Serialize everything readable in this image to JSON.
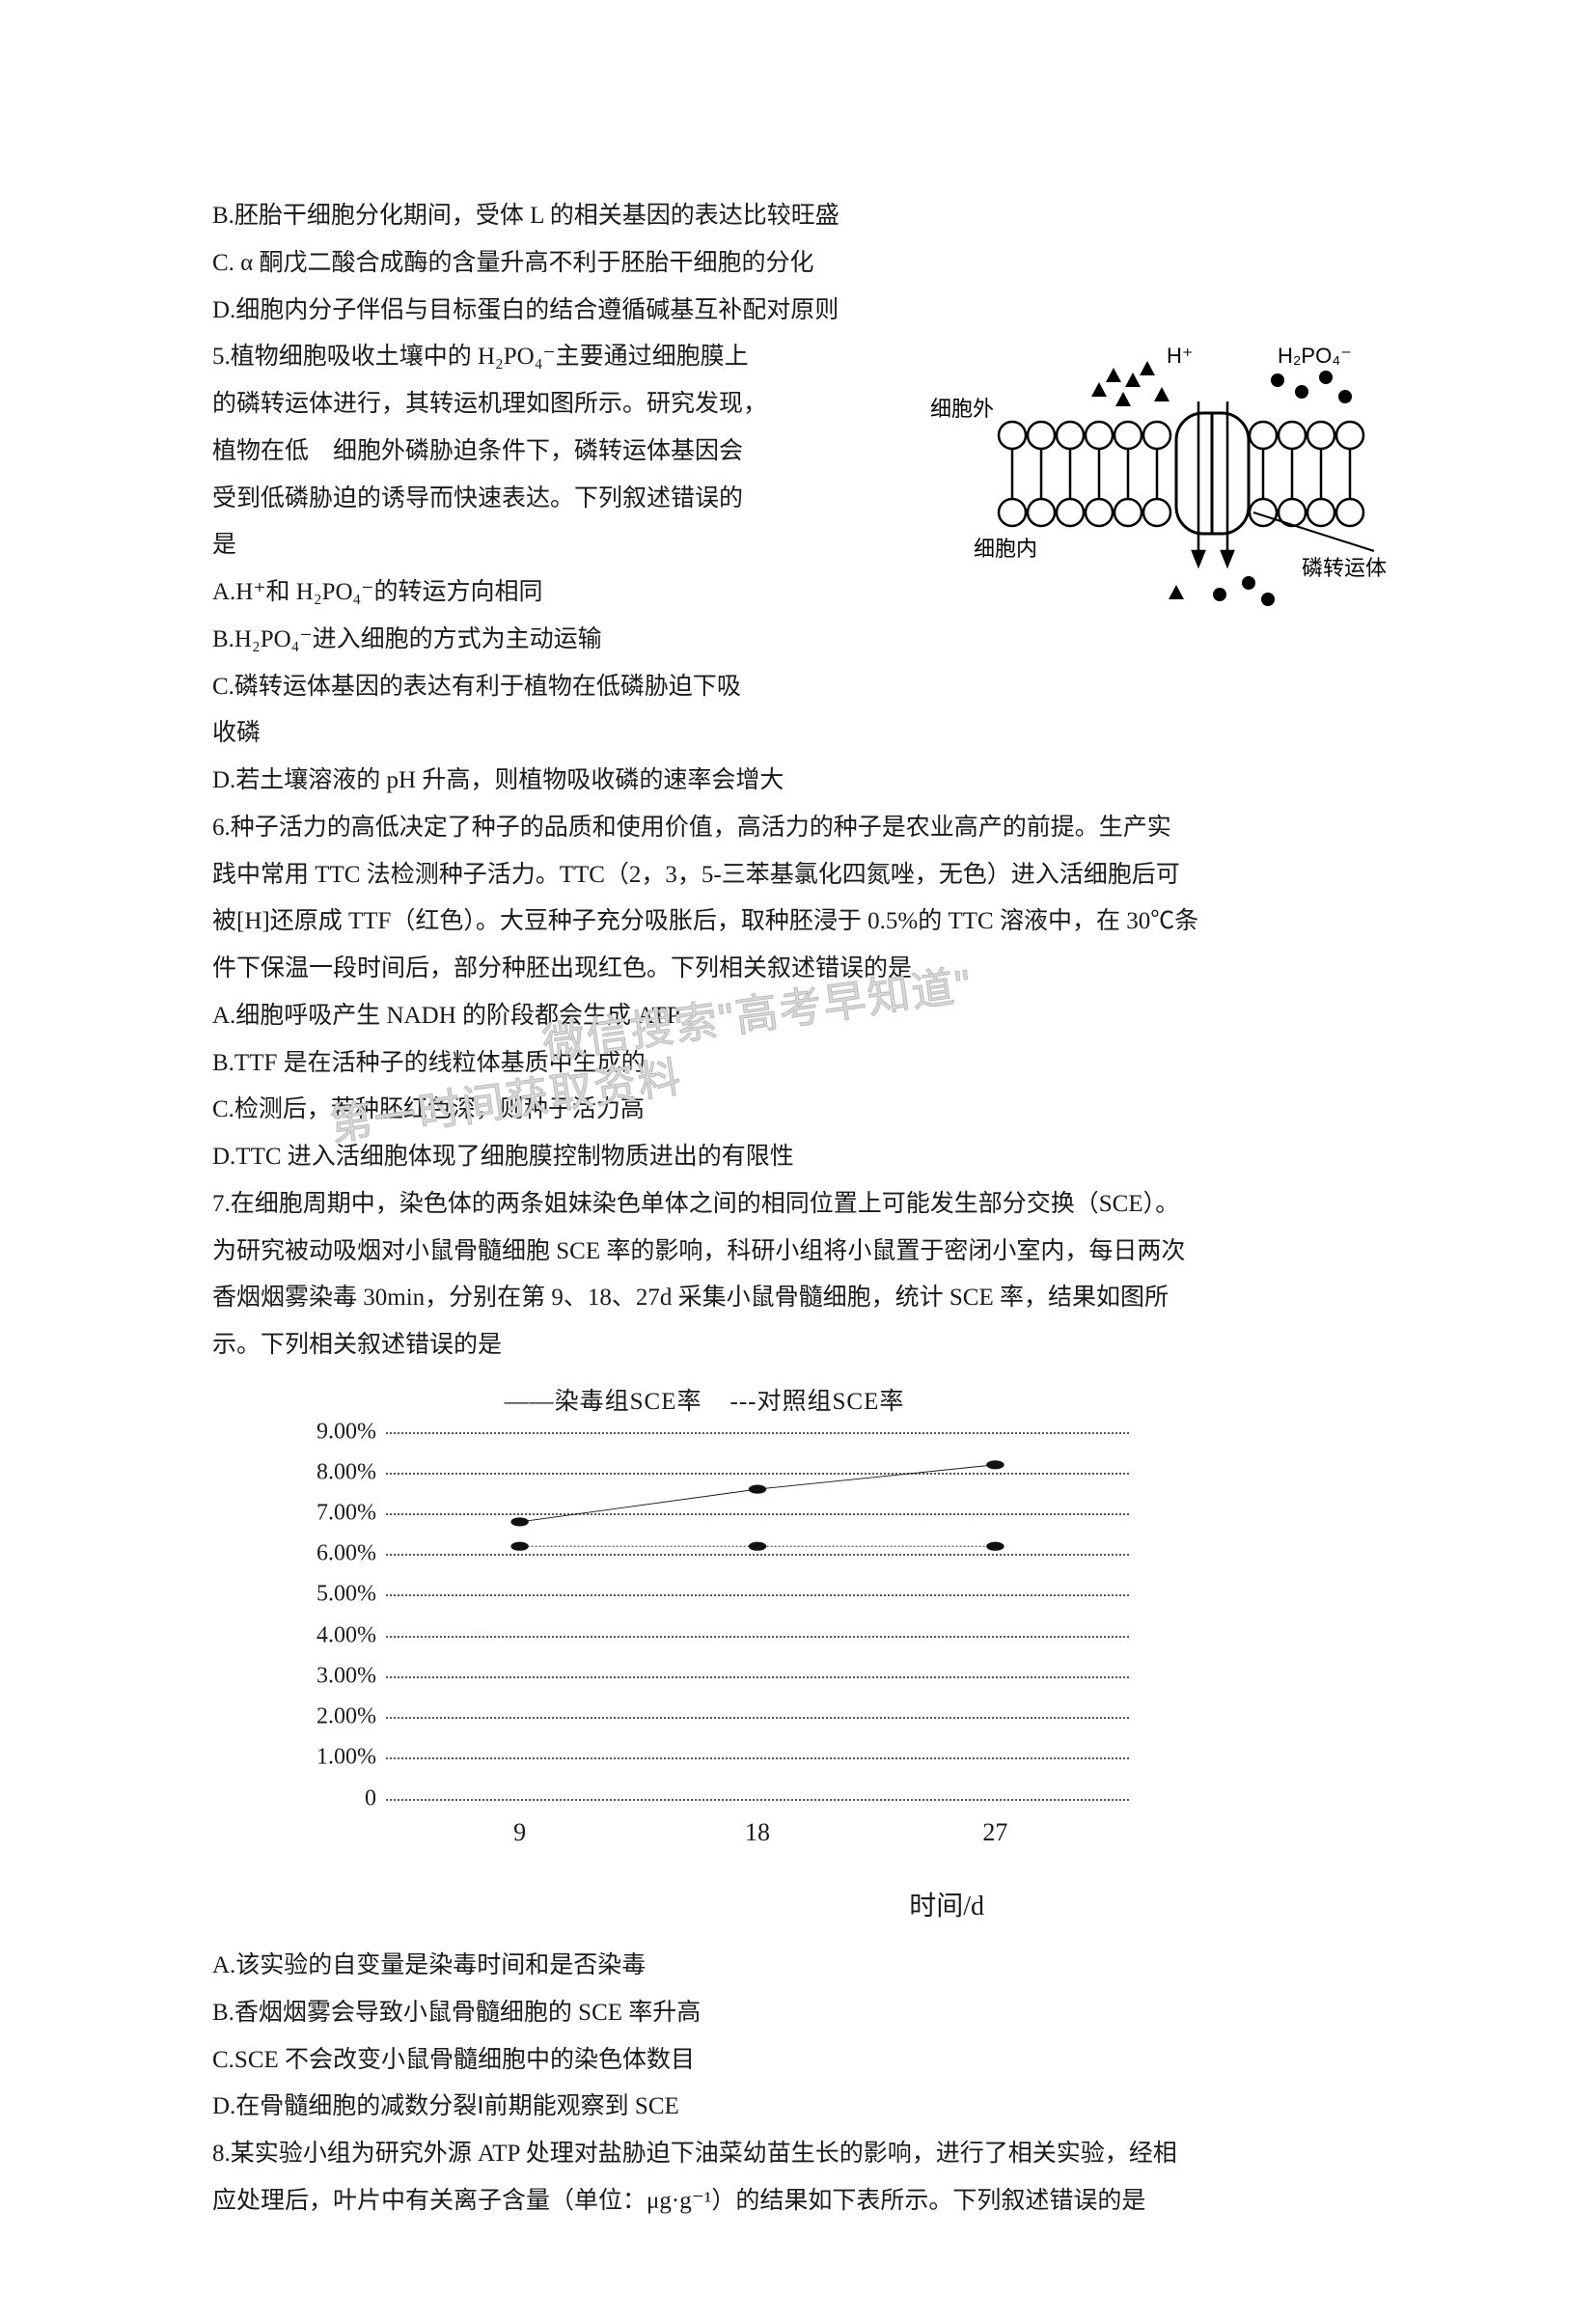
{
  "lines_top": [
    "B.胚胎干细胞分化期间，受体 L 的相关基因的表达比较旺盛",
    "C. α 酮戊二酸合成酶的含量升高不利于胚胎干细胞的分化",
    "D.细胞内分子伴侣与目标蛋白的结合遵循碱基互补配对原则"
  ],
  "q5": {
    "text_lines": [
      "5.植物细胞吸收土壤中的 H₂PO₄⁻主要通过细胞膜上",
      "的磷转运体进行，其转运机理如图所示。研究发现，",
      "植物在低　细胞外磷胁迫条件下，磷转运体基因会",
      "受到低磷胁迫的诱导而快速表达。下列叙述错误的",
      "是",
      "A.H⁺和 H₂PO₄⁻的转运方向相同",
      "B.H₂PO₄⁻进入细胞的方式为主动运输"
    ],
    "after_lines": [
      "C.磷转运体基因的表达有利于植物在低磷胁迫下吸",
      "收磷",
      "D.若土壤溶液的 pH 升高，则植物吸收磷的速率会增大"
    ],
    "diagram": {
      "labels": {
        "h_plus": "H⁺",
        "h2po4": "H₂PO₄⁻",
        "outside": "细胞外",
        "inside": "细胞内",
        "transporter": "磷转运体"
      }
    }
  },
  "q6_lines": [
    "6.种子活力的高低决定了种子的品质和使用价值，高活力的种子是农业高产的前提。生产实",
    "践中常用 TTC 法检测种子活力。TTC（2，3，5-三苯基氯化四氮唑，无色）进入活细胞后可",
    "被[H]还原成 TTF（红色）。大豆种子充分吸胀后，取种胚浸于 0.5%的 TTC 溶液中，在 30℃条",
    "件下保温一段时间后，部分种胚出现红色。下列相关叙述错误的是",
    "A.细胞呼吸产生 NADH 的阶段都会生成 ATP",
    "B.TTF 是在活种子的线粒体基质中生成的",
    "C.检测后，若种胚红色深，则种子活力高",
    "D.TTC 进入活细胞体现了细胞膜控制物质进出的有限性"
  ],
  "q7_lines": [
    "7.在细胞周期中，染色体的两条姐妹染色单体之间的相同位置上可能发生部分交换（SCE）。",
    "为研究被动吸烟对小鼠骨髓细胞 SCE 率的影响，科研小组将小鼠置于密闭小室内，每日两次",
    "香烟烟雾染毒 30min，分别在第 9、18、27d 采集小鼠骨髓细胞，统计 SCE 率，结果如图所",
    "示。下列相关叙述错误的是"
  ],
  "chart": {
    "legend": {
      "series1": "染毒组SCE率",
      "series2": "对照组SCE率"
    },
    "y_ticks": [
      "9.00%",
      "8.00%",
      "7.00%",
      "6.00%",
      "5.00%",
      "4.00%",
      "3.00%",
      "2.00%",
      "1.00%",
      "0"
    ],
    "y_max": 9.0,
    "x_ticks": [
      "9",
      "18",
      "27"
    ],
    "x_title": "时间/d",
    "series1_data": [
      6.8,
      7.6,
      8.2
    ],
    "series2_data": [
      6.2,
      6.2,
      6.2
    ],
    "series1_style": "solid",
    "series2_style": "dashed",
    "colors": {
      "grid": "#555555",
      "line": "#111111",
      "text": "#1a1a1a",
      "bg": "#ffffff"
    }
  },
  "q7_after": [
    "A.该实验的自变量是染毒时间和是否染毒",
    "B.香烟烟雾会导致小鼠骨髓细胞的 SCE 率升高",
    "C.SCE 不会改变小鼠骨髓细胞中的染色体数目",
    "D.在骨髓细胞的减数分裂Ⅰ前期能观察到 SCE"
  ],
  "q8_lines": [
    "8.某实验小组为研究外源 ATP 处理对盐胁迫下油菜幼苗生长的影响，进行了相关实验，经相",
    "应处理后，叶片中有关离子含量（单位：μg·g⁻¹）的结果如下表所示。下列叙述错误的是"
  ],
  "watermarks": {
    "wm1": "微信搜索\"高考早知道\"",
    "wm2": "第一时间获取资料"
  }
}
